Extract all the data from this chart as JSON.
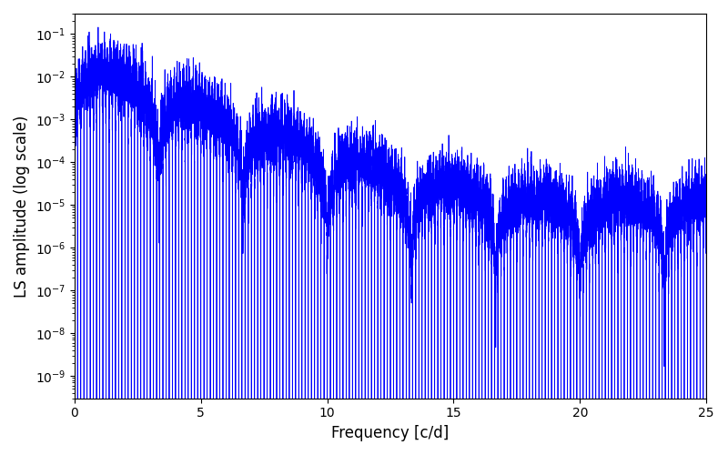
{
  "title": "",
  "xlabel": "Frequency [c/d]",
  "ylabel": "LS amplitude (log scale)",
  "xlim": [
    0,
    25
  ],
  "ylim": [
    3e-10,
    0.3
  ],
  "line_color": "#0000ff",
  "line_width": 0.6,
  "figsize": [
    8.0,
    5.0
  ],
  "dpi": 100,
  "background_color": "#ffffff",
  "freq_max": 25.0,
  "n_points": 15000,
  "seed": 7
}
